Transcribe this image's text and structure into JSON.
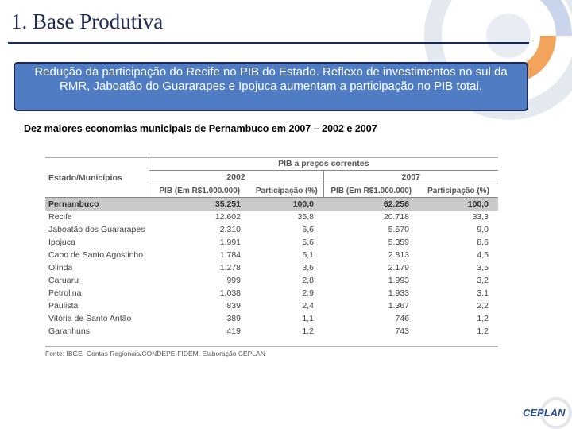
{
  "header": {
    "title": "1. Base Produtiva"
  },
  "callout": "Redução da participação do Recife no PIB do Estado. Reflexo de investimentos no sul da RMR, Jaboatão do Guararapes e Ipojuca aumentam a participação no PIB total.",
  "subtitle": "Dez maiores economias municipais de Pernambuco em 2007 – 2002 e 2007",
  "table": {
    "group_header": "PIB a preços correntes",
    "first_header": "Estado/Municípios",
    "years": [
      "2002",
      "2007"
    ],
    "sub_headers": [
      "PIB (Em R$1.000.000)",
      "Participação (%)",
      "PIB (Em R$1.000.000)",
      "Participação (%)"
    ],
    "rows": [
      [
        "Pernambuco",
        "35.251",
        "100,0",
        "62.256",
        "100,0"
      ],
      [
        "Recife",
        "12.602",
        "35,8",
        "20.718",
        "33,3"
      ],
      [
        "Jaboatão dos Guararapes",
        "2.310",
        "6,6",
        "5.570",
        "9,0"
      ],
      [
        "Ipojuca",
        "1.991",
        "5,6",
        "5.359",
        "8,6"
      ],
      [
        "Cabo de Santo Agostinho",
        "1.784",
        "5,1",
        "2.813",
        "4,5"
      ],
      [
        "Olinda",
        "1.278",
        "3,6",
        "2.179",
        "3,5"
      ],
      [
        "Caruaru",
        "999",
        "2,8",
        "1.993",
        "3,2"
      ],
      [
        "Petrolina",
        "1.038",
        "2,9",
        "1.933",
        "3,1"
      ],
      [
        "Paulista",
        "839",
        "2,4",
        "1.367",
        "2,2"
      ],
      [
        "Vitória de Santo Antão",
        "389",
        "1,1",
        "746",
        "1,2"
      ],
      [
        "Garanhuns",
        "419",
        "1,2",
        "743",
        "1,2"
      ]
    ],
    "source": "Fonte: IBGE- Contas Regionais/CONDEPE-FIDEM. Elaboração CEPLAN"
  },
  "logo": "CEPLAN"
}
